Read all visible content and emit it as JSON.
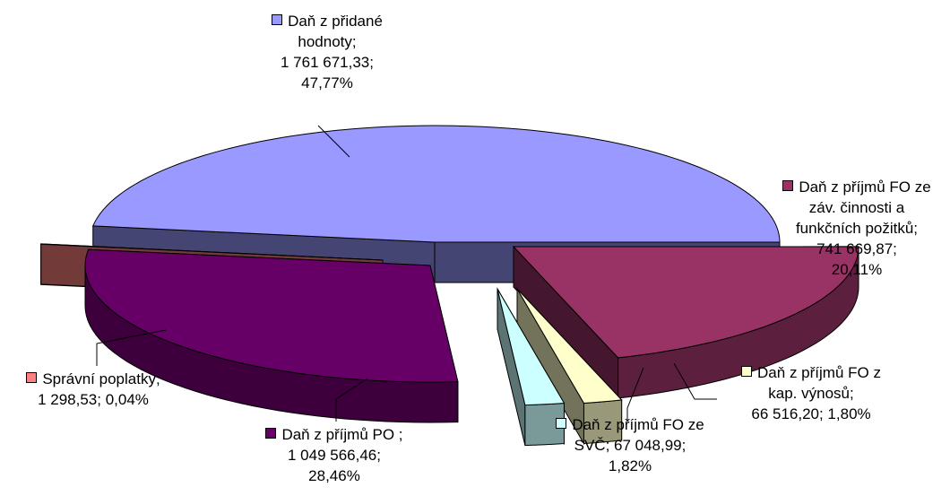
{
  "chart_data": {
    "type": "pie",
    "style": "3d-exploded",
    "slices": [
      {
        "name": "Daň z přidané hodnoty",
        "value": "1 761 671,33",
        "percent": "47,77%",
        "value_num": 1761671.33,
        "percent_num": 47.77,
        "color": "#9999ff",
        "label_lines": [
          "Daň z přidané",
          "hodnoty;",
          "1 761 671,33;",
          "47,77%"
        ]
      },
      {
        "name": "Daň z příjmů FO ze záv. činnosti a funkčních požitků",
        "value": "741 669,87",
        "percent": "20,11%",
        "value_num": 741669.87,
        "percent_num": 20.11,
        "color": "#993366",
        "label_lines": [
          "Daň z příjmů FO ze",
          "záv. činnosti a",
          "funkčních požitků;",
          "741 669,87;",
          "20,11%"
        ]
      },
      {
        "name": "Daň z příjmů FO z kap. výnosů",
        "value": "66 516,20",
        "percent": "1,80%",
        "value_num": 66516.2,
        "percent_num": 1.8,
        "color": "#ffffcc",
        "label_lines": [
          "Daň z příjmů FO z",
          "kap. výnosů;",
          "66 516,20; 1,80%"
        ]
      },
      {
        "name": "Daň z příjmů FO ze SVČ",
        "value": "67 048,99",
        "percent": "1,82%",
        "value_num": 67048.99,
        "percent_num": 1.82,
        "color": "#ccffff",
        "label_lines": [
          "Daň z příjmů FO ze",
          "SVČ; 67 048,99;",
          "1,82%"
        ]
      },
      {
        "name": "Daň z příjmů PO",
        "value": "1 049 566,46",
        "percent": "28,46%",
        "value_num": 1049566.46,
        "percent_num": 28.46,
        "color": "#660066",
        "label_lines": [
          "Daň z příjmů PO ;",
          "1 049 566,46;",
          "28,46%"
        ]
      },
      {
        "name": "Správní poplatky",
        "value": "1 298,53",
        "percent": "0,04%",
        "value_num": 1298.53,
        "percent_num": 0.04,
        "color": "#ff8080",
        "label_lines": [
          "Správní poplatky;",
          "1 298,53; 0,04%"
        ]
      }
    ]
  }
}
